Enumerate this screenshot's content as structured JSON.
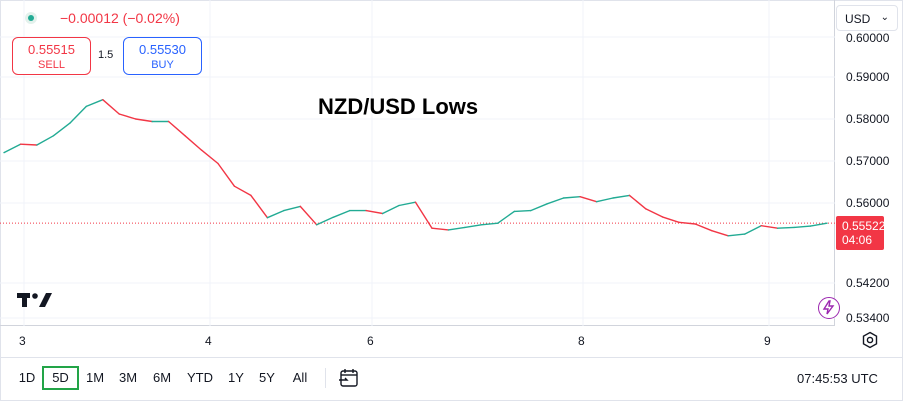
{
  "legend": {
    "change": "−0.00012 (−0.02%)",
    "sell_price": "0.55515",
    "sell_label": "SELL",
    "spread": "1.5",
    "buy_price": "0.55530",
    "buy_label": "BUY"
  },
  "price_scale": {
    "currency": "USD",
    "last_price": "0.55522",
    "countdown": "04:06"
  },
  "time_axis": {
    "ticks": [
      "3",
      "4",
      "6",
      "8",
      "9"
    ]
  },
  "toolbar": {
    "ranges": [
      "1D",
      "5D",
      "1M",
      "3M",
      "6M",
      "YTD",
      "1Y",
      "5Y",
      "All"
    ],
    "active_range": "5D",
    "clock": "07:45:53 UTC"
  },
  "colors": {
    "up": "#22ab94",
    "down": "#f23645",
    "buy": "#2962ff",
    "active_range_border": "#22a447"
  },
  "chart_data": {
    "type": "line",
    "title": "NZD/USD Lows",
    "xlabel": "",
    "ylabel": "",
    "x_ticks": [
      "3",
      "4",
      "6",
      "8",
      "9"
    ],
    "y_ticks": [
      "0.60000",
      "0.59000",
      "0.58000",
      "0.57000",
      "0.56000",
      "0.54200",
      "0.53400"
    ],
    "grid": true,
    "series": [
      {
        "x": [
          0,
          2,
          4,
          6,
          8,
          10,
          12,
          14,
          16,
          18,
          20,
          22,
          24,
          26,
          28,
          30,
          32,
          34,
          36,
          38,
          40,
          42,
          44,
          46,
          48,
          50,
          52,
          54,
          56,
          58,
          60,
          62,
          64,
          66,
          68,
          70,
          72,
          74,
          76,
          78,
          80,
          82,
          84,
          86,
          88,
          90,
          92,
          94,
          96,
          98,
          100
        ],
        "y": [
          0.572,
          0.574,
          0.5738,
          0.576,
          0.579,
          0.583,
          0.5846,
          0.5812,
          0.58,
          0.5794,
          0.5794,
          0.576,
          0.5726,
          0.5694,
          0.564,
          0.5618,
          0.5565,
          0.5582,
          0.5592,
          0.5548,
          0.5566,
          0.5582,
          0.5582,
          0.5575,
          0.5594,
          0.5602,
          0.554,
          0.5536,
          0.5542,
          0.5548,
          0.5552,
          0.558,
          0.5582,
          0.5598,
          0.5612,
          0.5615,
          0.5603,
          0.5612,
          0.5618,
          0.5586,
          0.5567,
          0.5554,
          0.555,
          0.5534,
          0.5522,
          0.5526,
          0.5546,
          0.554,
          0.5542,
          0.5545,
          0.5552
        ]
      }
    ],
    "last_price": 0.55522
  }
}
